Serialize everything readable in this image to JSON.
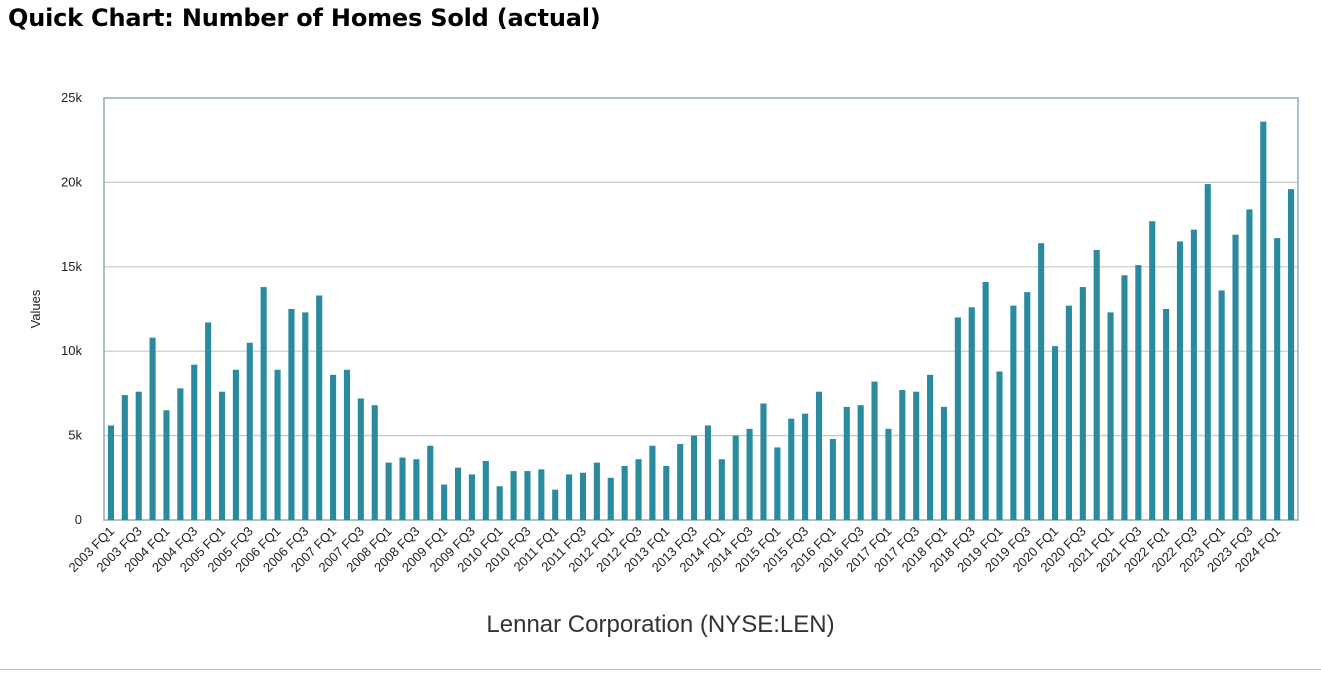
{
  "header": {
    "title": "Quick Chart: Number of Homes Sold (actual)"
  },
  "footer": {
    "caption": "Lennar Corporation (NYSE:LEN)"
  },
  "colors": {
    "bar": "#2a8a9e",
    "grid": "#c8c8c8",
    "frame": "#8faab5"
  },
  "chart_data": {
    "type": "bar",
    "title": "Quick Chart: Number of Homes Sold (actual)",
    "xlabel": "Lennar Corporation (NYSE:LEN)",
    "ylabel": "Values",
    "ylim": [
      0,
      25000
    ],
    "yticks": [
      0,
      5000,
      10000,
      15000,
      20000,
      25000
    ],
    "ytick_labels": [
      "0",
      "5k",
      "10k",
      "15k",
      "20k",
      "25k"
    ],
    "grid": true,
    "categories": [
      "2003 FQ1",
      "2003 FQ2",
      "2003 FQ3",
      "2003 FQ4",
      "2004 FQ1",
      "2004 FQ2",
      "2004 FQ3",
      "2004 FQ4",
      "2005 FQ1",
      "2005 FQ2",
      "2005 FQ3",
      "2005 FQ4",
      "2006 FQ1",
      "2006 FQ2",
      "2006 FQ3",
      "2006 FQ4",
      "2007 FQ1",
      "2007 FQ2",
      "2007 FQ3",
      "2007 FQ4",
      "2008 FQ1",
      "2008 FQ2",
      "2008 FQ3",
      "2008 FQ4",
      "2009 FQ1",
      "2009 FQ2",
      "2009 FQ3",
      "2009 FQ4",
      "2010 FQ1",
      "2010 FQ2",
      "2010 FQ3",
      "2010 FQ4",
      "2011 FQ1",
      "2011 FQ2",
      "2011 FQ3",
      "2011 FQ4",
      "2012 FQ1",
      "2012 FQ2",
      "2012 FQ3",
      "2012 FQ4",
      "2013 FQ1",
      "2013 FQ2",
      "2013 FQ3",
      "2013 FQ4",
      "2014 FQ1",
      "2014 FQ2",
      "2014 FQ3",
      "2014 FQ4",
      "2015 FQ1",
      "2015 FQ2",
      "2015 FQ3",
      "2015 FQ4",
      "2016 FQ1",
      "2016 FQ2",
      "2016 FQ3",
      "2016 FQ4",
      "2017 FQ1",
      "2017 FQ2",
      "2017 FQ3",
      "2017 FQ4",
      "2018 FQ1",
      "2018 FQ2",
      "2018 FQ3",
      "2018 FQ4",
      "2019 FQ1",
      "2019 FQ2",
      "2019 FQ3",
      "2019 FQ4",
      "2020 FQ1",
      "2020 FQ2",
      "2020 FQ3",
      "2020 FQ4",
      "2021 FQ1",
      "2021 FQ2",
      "2021 FQ3",
      "2021 FQ4",
      "2022 FQ1",
      "2022 FQ2",
      "2022 FQ3",
      "2022 FQ4",
      "2023 FQ1",
      "2023 FQ2",
      "2023 FQ3",
      "2023 FQ4",
      "2024 FQ1",
      "2024 FQ2"
    ],
    "shown_tick_labels": [
      "2003 FQ1",
      "2003 FQ3",
      "2004 FQ1",
      "2004 FQ3",
      "2005 FQ1",
      "2005 FQ3",
      "2006 FQ1",
      "2006 FQ3",
      "2007 FQ1",
      "2007 FQ3",
      "2008 FQ1",
      "2008 FQ3",
      "2009 FQ1",
      "2009 FQ3",
      "2010 FQ1",
      "2010 FQ3",
      "2011 FQ1",
      "2011 FQ3",
      "2012 FQ1",
      "2012 FQ3",
      "2013 FQ1",
      "2013 FQ3",
      "2014 FQ1",
      "2014 FQ3",
      "2015 FQ1",
      "2015 FQ3",
      "2016 FQ1",
      "2016 FQ3",
      "2017 FQ1",
      "2017 FQ3",
      "2018 FQ1",
      "2018 FQ3",
      "2019 FQ1",
      "2019 FQ3",
      "2020 FQ1",
      "2020 FQ3",
      "2021 FQ1",
      "2021 FQ3",
      "2022 FQ1",
      "2022 FQ3",
      "2023 FQ1",
      "2023 FQ3",
      "2024 FQ1"
    ],
    "values": [
      5600,
      7400,
      7600,
      10800,
      6500,
      7800,
      9200,
      11700,
      7600,
      8900,
      10500,
      13800,
      8900,
      12500,
      12300,
      13300,
      8600,
      8900,
      7200,
      6800,
      3400,
      3700,
      3600,
      4400,
      2100,
      3100,
      2700,
      3500,
      2000,
      2900,
      2900,
      3000,
      1800,
      2700,
      2800,
      3400,
      2500,
      3200,
      3600,
      4400,
      3200,
      4500,
      5000,
      5600,
      3600,
      5000,
      5400,
      6900,
      4300,
      6000,
      6300,
      7600,
      4800,
      6700,
      6800,
      8200,
      5400,
      7700,
      7600,
      8600,
      6700,
      12000,
      12600,
      14100,
      8800,
      12700,
      13500,
      16400,
      10300,
      12700,
      13800,
      16000,
      12300,
      14500,
      15100,
      17700,
      12500,
      16500,
      17200,
      19900,
      13600,
      16900,
      18400,
      23600,
      16700,
      19600
    ]
  }
}
